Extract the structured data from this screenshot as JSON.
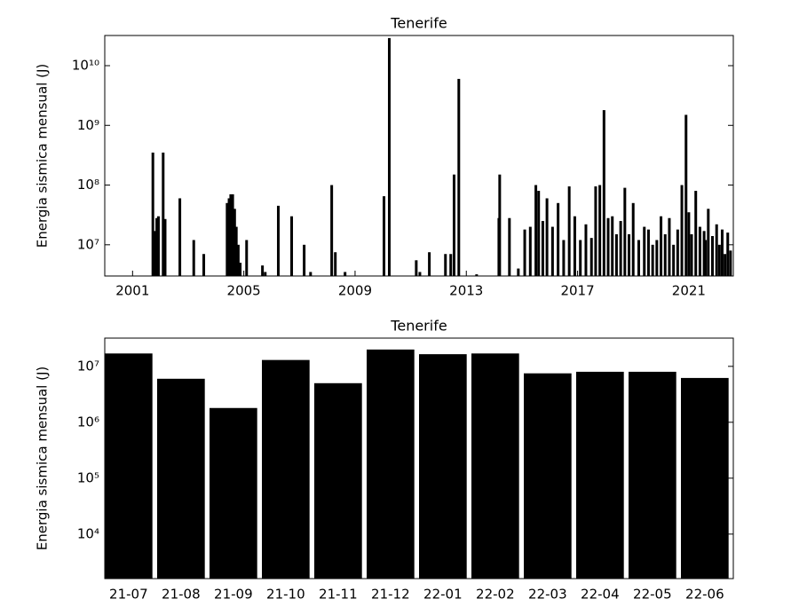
{
  "chart_data": [
    {
      "type": "bar",
      "title": "Tenerife",
      "ylabel": "Energia sismica mensual (J)",
      "yscale": "log",
      "color": "#000000",
      "x": [
        2001.73,
        2001.8,
        2001.87,
        2001.93,
        2002.1,
        2002.17,
        2002.7,
        2003.2,
        2003.56,
        2004.4,
        2004.47,
        2004.53,
        2004.6,
        2004.67,
        2004.73,
        2004.8,
        2004.87,
        2005.1,
        2005.67,
        2005.77,
        2006.24,
        2006.72,
        2007.17,
        2007.4,
        2008.16,
        2008.29,
        2008.64,
        2010.04,
        2010.23,
        2011.2,
        2011.33,
        2011.67,
        2012.25,
        2012.44,
        2012.56,
        2012.73,
        2013.37,
        2014.17,
        2014.2,
        2014.55,
        2014.87,
        2015.1,
        2015.3,
        2015.5,
        2015.6,
        2015.75,
        2015.9,
        2016.1,
        2016.3,
        2016.5,
        2016.7,
        2016.9,
        2017.1,
        2017.3,
        2017.5,
        2017.65,
        2017.8,
        2017.95,
        2018.1,
        2018.25,
        2018.4,
        2018.55,
        2018.7,
        2018.85,
        2019.0,
        2019.2,
        2019.4,
        2019.55,
        2019.7,
        2019.85,
        2020.0,
        2020.15,
        2020.3,
        2020.45,
        2020.6,
        2020.75,
        2020.9,
        2021.0,
        2021.1,
        2021.25,
        2021.4,
        2021.55,
        2021.6,
        2021.7,
        2021.85,
        2022.0,
        2022.1,
        2022.2,
        2022.3,
        2022.4,
        2022.5
      ],
      "values": [
        350000000,
        17000000,
        28000000,
        30000000,
        350000000,
        27000000,
        60000000,
        12000000,
        7000000,
        50000000,
        60000000,
        70000000,
        70000000,
        40000000,
        20000000,
        10000000,
        5000000,
        12000000,
        4500000,
        3500000,
        45000000,
        30000000,
        10000000,
        3500000,
        100000000,
        7500000,
        3500000,
        65000000,
        29000000000,
        5500000,
        3500000,
        7500000,
        7000000,
        7000000,
        150000000,
        6000000000,
        3200000,
        28000000,
        150000000,
        28000000,
        4000000,
        18000000,
        20000000,
        100000000,
        80000000,
        25000000,
        60000000,
        20000000,
        50000000,
        12000000,
        95000000,
        30000000,
        12000000,
        22000000,
        13000000,
        95000000,
        100000000,
        1800000000,
        28000000,
        30000000,
        15000000,
        25000000,
        90000000,
        15000000,
        50000000,
        12000000,
        20000000,
        18000000,
        10000000,
        12000000,
        30000000,
        15000000,
        28000000,
        10000000,
        18000000,
        100000000,
        1500000000,
        35000000,
        15000000,
        80000000,
        20000000,
        17000000,
        12000000,
        40000000,
        14000000,
        22000000,
        10000000,
        18000000,
        7000000,
        16000000,
        8000000
      ],
      "xlim": [
        2000,
        2022.6
      ],
      "xticks": [
        2001,
        2005,
        2009,
        2013,
        2017,
        2021
      ],
      "ylim": [
        3000000,
        32000000000
      ],
      "yticks": [
        {
          "value": 10000000,
          "label": "10⁷"
        },
        {
          "value": 100000000,
          "label": "10⁸"
        },
        {
          "value": 1000000000,
          "label": "10⁹"
        },
        {
          "value": 10000000000,
          "label": "10¹⁰"
        }
      ]
    },
    {
      "type": "bar",
      "title": "Tenerife",
      "ylabel": "Energia sismica mensual (J)",
      "yscale": "log",
      "color": "#000000",
      "categories": [
        "21-07",
        "21-08",
        "21-09",
        "21-10",
        "21-11",
        "21-12",
        "22-01",
        "22-02",
        "22-03",
        "22-04",
        "22-05",
        "22-06"
      ],
      "values": [
        17000000,
        6000000,
        1800000,
        13000000,
        5000000,
        20000000,
        16500000,
        17000000,
        7500000,
        8000000,
        8000000,
        6200000
      ],
      "ylim": [
        1600,
        32000000
      ],
      "yticks": [
        {
          "value": 10000,
          "label": "10⁴"
        },
        {
          "value": 100000,
          "label": "10⁵"
        },
        {
          "value": 1000000,
          "label": "10⁶"
        },
        {
          "value": 10000000,
          "label": "10⁷"
        }
      ]
    }
  ]
}
